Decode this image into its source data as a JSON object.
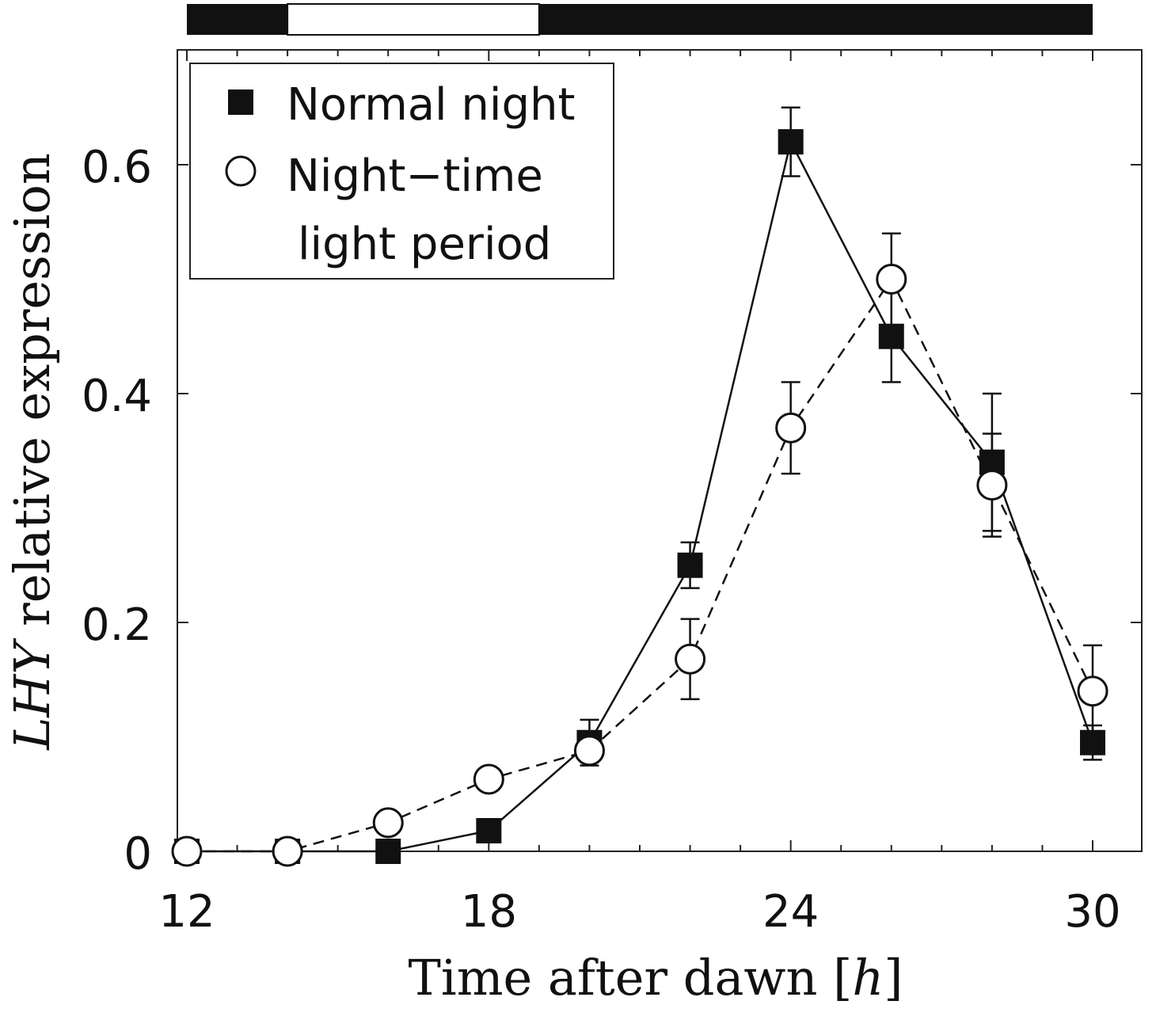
{
  "chart_data": {
    "type": "line",
    "xlabel": "Time after dawn [h]",
    "ylabel": "LHY relative expression",
    "ylabel_italic_part": "LHY",
    "ylabel_rest": "relative expression",
    "xlabel_main": "Time after dawn ",
    "xlabel_unit": "h",
    "xlim": [
      12,
      31.2
    ],
    "ylim": [
      0,
      0.7
    ],
    "xticks": [
      12,
      18,
      24,
      30
    ],
    "xtick_labels": [
      "12",
      "18",
      "24",
      "30"
    ],
    "yticks": [
      0,
      0.2,
      0.4,
      0.6
    ],
    "ytick_labels": [
      "0",
      "0.2",
      "0.4",
      "0.6"
    ],
    "x_minor_step": 1,
    "grid": false,
    "legend_position": "top-left",
    "light_bar": {
      "dark_before": [
        12,
        14
      ],
      "light": [
        14,
        19
      ],
      "dark_after": [
        19,
        30
      ]
    },
    "series": [
      {
        "name": "Normal night",
        "marker": "square",
        "line_style": "solid",
        "x": [
          12,
          14,
          16,
          18,
          20,
          22,
          24,
          26,
          28,
          30
        ],
        "y": [
          0,
          0,
          0,
          0.018,
          0.095,
          0.25,
          0.62,
          0.45,
          0.34,
          0.095
        ],
        "err": [
          0,
          0,
          0,
          0,
          0.02,
          0.02,
          0.03,
          0.04,
          0.06,
          0.015
        ]
      },
      {
        "name": "Night−time light period",
        "name_lines": [
          "Night−time",
          "light period"
        ],
        "marker": "circle",
        "line_style": "dashed",
        "x": [
          12,
          14,
          16,
          18,
          20,
          22,
          24,
          26,
          28,
          30
        ],
        "y": [
          0,
          0,
          0.025,
          0.063,
          0.088,
          0.168,
          0.37,
          0.5,
          0.32,
          0.14
        ],
        "err": [
          0,
          0,
          0,
          0,
          0.01,
          0.035,
          0.04,
          0.04,
          0.045,
          0.04
        ]
      }
    ]
  }
}
